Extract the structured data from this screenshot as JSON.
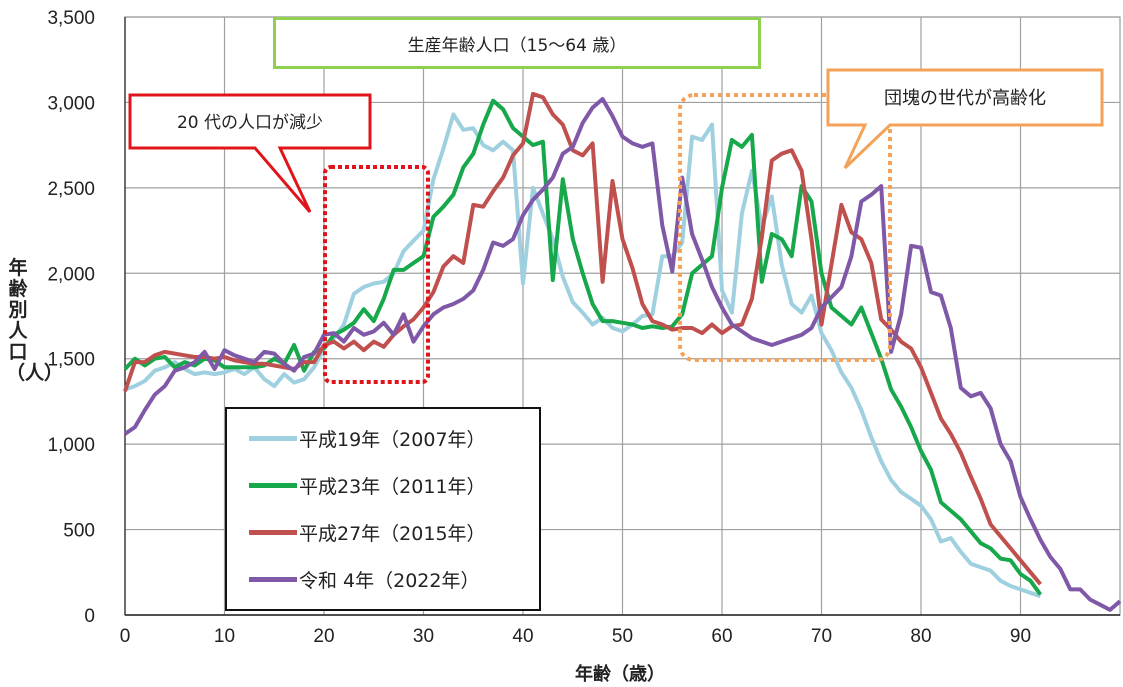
{
  "chart_data": {
    "type": "line",
    "xlabel": "年齢（歳）",
    "ylabel": "年齢別人口（人）",
    "xlim": [
      0,
      100
    ],
    "ylim": [
      0,
      3500
    ],
    "xticks": [
      0,
      10,
      20,
      30,
      40,
      50,
      60,
      70,
      80,
      90
    ],
    "yticks": [
      0,
      500,
      1000,
      1500,
      2000,
      2500,
      3000,
      3500
    ],
    "ytick_labels": [
      "0",
      "500",
      "1,000",
      "1,500",
      "2,000",
      "2,500",
      "3,000",
      "3,500"
    ],
    "grid": true,
    "legend_position": "bottom-left",
    "series": [
      {
        "name": "平成19年（2007年）",
        "color": "#9fd0e0",
        "x": [
          0,
          1,
          2,
          3,
          4,
          5,
          6,
          7,
          8,
          9,
          10,
          11,
          12,
          13,
          14,
          15,
          16,
          17,
          18,
          19,
          20,
          21,
          22,
          23,
          24,
          25,
          26,
          27,
          28,
          29,
          30,
          31,
          32,
          33,
          34,
          35,
          36,
          37,
          38,
          39,
          40,
          41,
          42,
          43,
          44,
          45,
          46,
          47,
          48,
          49,
          50,
          51,
          52,
          53,
          54,
          55,
          56,
          57,
          58,
          59,
          60,
          61,
          62,
          63,
          64,
          65,
          66,
          67,
          68,
          69,
          70,
          71,
          72,
          73,
          74,
          75,
          76,
          77,
          78,
          79,
          80,
          81,
          82,
          83,
          84,
          85,
          86,
          87,
          88,
          89,
          90,
          91,
          92
        ],
        "y": [
          1320,
          1340,
          1370,
          1430,
          1450,
          1480,
          1440,
          1410,
          1420,
          1410,
          1420,
          1440,
          1410,
          1450,
          1380,
          1340,
          1410,
          1360,
          1380,
          1450,
          1560,
          1620,
          1700,
          1880,
          1920,
          1940,
          1950,
          2000,
          2130,
          2190,
          2250,
          2550,
          2730,
          2930,
          2840,
          2850,
          2750,
          2720,
          2770,
          2720,
          1940,
          2500,
          2350,
          2200,
          1980,
          1830,
          1770,
          1700,
          1740,
          1680,
          1660,
          1700,
          1750,
          1760,
          2100,
          2100,
          2180,
          2800,
          2780,
          2870,
          1900,
          1770,
          2350,
          2600,
          2270,
          2450,
          2050,
          1820,
          1770,
          1870,
          1650,
          1550,
          1420,
          1330,
          1200,
          1040,
          900,
          790,
          720,
          680,
          640,
          560,
          430,
          450,
          370,
          300,
          280,
          260,
          200,
          170,
          150,
          130,
          110
        ]
      },
      {
        "name": "平成23年（2011年）",
        "color": "#16a84a",
        "x": [
          0,
          1,
          2,
          3,
          4,
          5,
          6,
          7,
          8,
          9,
          10,
          11,
          12,
          13,
          14,
          15,
          16,
          17,
          18,
          19,
          20,
          21,
          22,
          23,
          24,
          25,
          26,
          27,
          28,
          29,
          30,
          31,
          32,
          33,
          34,
          35,
          36,
          37,
          38,
          39,
          40,
          41,
          42,
          43,
          44,
          45,
          46,
          47,
          48,
          49,
          50,
          51,
          52,
          53,
          54,
          55,
          56,
          57,
          58,
          59,
          60,
          61,
          62,
          63,
          64,
          65,
          66,
          67,
          68,
          69,
          70,
          71,
          72,
          73,
          74,
          75,
          76,
          77,
          78,
          79,
          80,
          81,
          82,
          83,
          84,
          85,
          86,
          87,
          88,
          89,
          90,
          91,
          92
        ],
        "y": [
          1440,
          1500,
          1460,
          1500,
          1510,
          1450,
          1480,
          1460,
          1500,
          1490,
          1450,
          1450,
          1450,
          1450,
          1460,
          1500,
          1470,
          1580,
          1430,
          1540,
          1560,
          1640,
          1670,
          1710,
          1790,
          1720,
          1850,
          2020,
          2020,
          2060,
          2100,
          2330,
          2390,
          2460,
          2620,
          2700,
          2870,
          3010,
          2960,
          2850,
          2800,
          2750,
          2770,
          1960,
          2550,
          2200,
          2000,
          1820,
          1720,
          1720,
          1710,
          1700,
          1680,
          1690,
          1680,
          1690,
          1760,
          2000,
          2050,
          2100,
          2500,
          2780,
          2740,
          2810,
          1950,
          2230,
          2200,
          2100,
          2510,
          2420,
          2000,
          1800,
          1750,
          1700,
          1800,
          1650,
          1500,
          1320,
          1220,
          1100,
          960,
          850,
          660,
          610,
          560,
          490,
          420,
          390,
          330,
          320,
          240,
          200,
          120
        ]
      },
      {
        "name": "平成27年（2015年）",
        "color": "#c0504d",
        "x": [
          0,
          1,
          2,
          3,
          4,
          5,
          6,
          7,
          8,
          9,
          10,
          11,
          12,
          13,
          14,
          15,
          16,
          17,
          18,
          19,
          20,
          21,
          22,
          23,
          24,
          25,
          26,
          27,
          28,
          29,
          30,
          31,
          32,
          33,
          34,
          35,
          36,
          37,
          38,
          39,
          40,
          41,
          42,
          43,
          44,
          45,
          46,
          47,
          48,
          49,
          50,
          51,
          52,
          53,
          54,
          55,
          56,
          57,
          58,
          59,
          60,
          61,
          62,
          63,
          64,
          65,
          66,
          67,
          68,
          69,
          70,
          71,
          72,
          73,
          74,
          75,
          76,
          77,
          78,
          79,
          80,
          81,
          82,
          83,
          84,
          85,
          86,
          87,
          88,
          89,
          90,
          91,
          92
        ],
        "y": [
          1310,
          1480,
          1480,
          1520,
          1540,
          1530,
          1520,
          1510,
          1510,
          1500,
          1510,
          1490,
          1480,
          1470,
          1470,
          1460,
          1450,
          1440,
          1480,
          1480,
          1580,
          1600,
          1560,
          1600,
          1550,
          1600,
          1570,
          1640,
          1690,
          1730,
          1800,
          1890,
          2040,
          2100,
          2060,
          2400,
          2390,
          2480,
          2560,
          2690,
          2760,
          3050,
          3030,
          2930,
          2870,
          2720,
          2690,
          2760,
          1950,
          2540,
          2200,
          2030,
          1820,
          1720,
          1700,
          1670,
          1680,
          1680,
          1650,
          1700,
          1650,
          1690,
          1700,
          1850,
          2210,
          2660,
          2700,
          2720,
          2600,
          2200,
          1700,
          2050,
          2400,
          2240,
          2200,
          2060,
          1730,
          1670,
          1600,
          1560,
          1450,
          1300,
          1150,
          1060,
          950,
          810,
          680,
          530,
          460,
          390,
          320,
          250,
          180
        ]
      },
      {
        "name": "令和 4年（2022年）",
        "color": "#7f58a8",
        "x": [
          0,
          1,
          2,
          3,
          4,
          5,
          6,
          7,
          8,
          9,
          10,
          11,
          12,
          13,
          14,
          15,
          16,
          17,
          18,
          19,
          20,
          21,
          22,
          23,
          24,
          25,
          26,
          27,
          28,
          29,
          30,
          31,
          32,
          33,
          34,
          35,
          36,
          37,
          38,
          39,
          40,
          41,
          42,
          43,
          44,
          45,
          46,
          47,
          48,
          49,
          50,
          51,
          52,
          53,
          54,
          55,
          56,
          57,
          58,
          59,
          60,
          61,
          62,
          63,
          64,
          65,
          66,
          67,
          68,
          69,
          70,
          71,
          72,
          73,
          74,
          75,
          76,
          77,
          78,
          79,
          80,
          81,
          82,
          83,
          84,
          85,
          86,
          87,
          88,
          89,
          90,
          91,
          92,
          93,
          94,
          95,
          96,
          97,
          98,
          99,
          100
        ],
        "y": [
          1060,
          1100,
          1200,
          1290,
          1340,
          1430,
          1450,
          1480,
          1540,
          1440,
          1550,
          1520,
          1500,
          1480,
          1540,
          1530,
          1470,
          1430,
          1510,
          1530,
          1640,
          1650,
          1600,
          1680,
          1640,
          1660,
          1710,
          1640,
          1760,
          1600,
          1690,
          1760,
          1800,
          1820,
          1850,
          1900,
          2020,
          2180,
          2160,
          2200,
          2340,
          2430,
          2490,
          2560,
          2700,
          2740,
          2880,
          2970,
          3020,
          2920,
          2800,
          2760,
          2740,
          2760,
          2280,
          2010,
          2560,
          2230,
          2080,
          1920,
          1800,
          1700,
          1660,
          1620,
          1600,
          1580,
          1600,
          1620,
          1640,
          1680,
          1800,
          1860,
          1920,
          2100,
          2420,
          2460,
          2510,
          1540,
          1760,
          2160,
          2150,
          1890,
          1870,
          1680,
          1330,
          1280,
          1300,
          1210,
          1000,
          900,
          690,
          560,
          440,
          340,
          270,
          150,
          150,
          90,
          60,
          30,
          80
        ]
      }
    ]
  },
  "annotations": {
    "working_age": "生産年齢人口（15〜64 歳）",
    "twenties": "20 代の人口が減少",
    "baby_boomers": "団塊の世代が高齢化"
  }
}
